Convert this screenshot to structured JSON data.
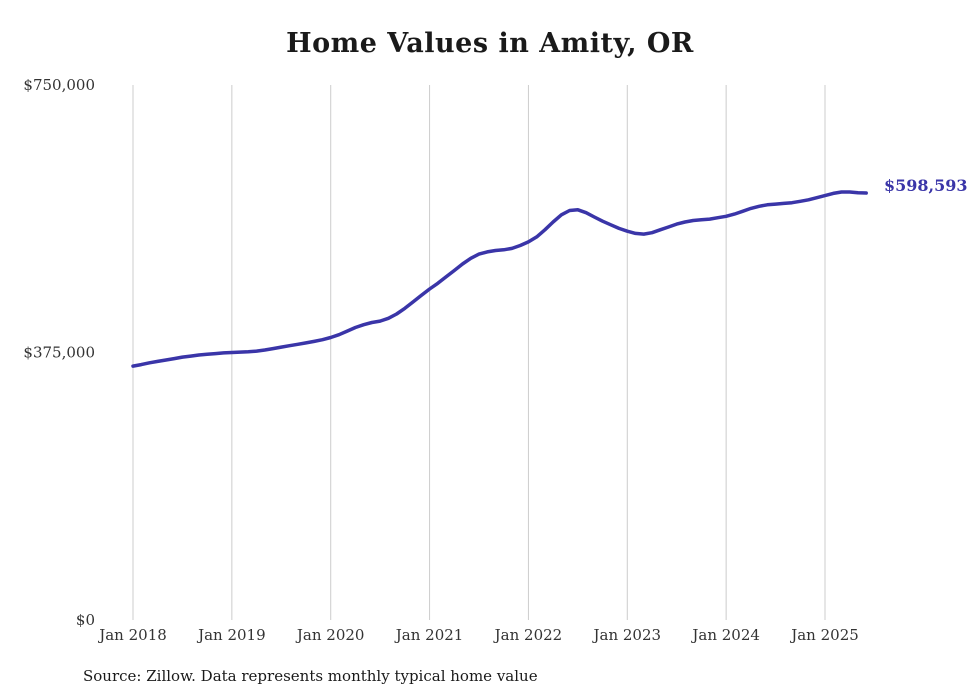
{
  "chart": {
    "title": "Home Values in Amity, OR"
  },
  "colors": {
    "line": "#3a35a8",
    "grid": "#cccccc",
    "axis_text": "#333333",
    "title_text": "#1a1a1a"
  },
  "chart_data": {
    "type": "line",
    "title": "Home Values in Amity, OR",
    "xlabel": "",
    "ylabel": "",
    "ylim": [
      0,
      750000
    ],
    "grid": "vertical-only",
    "legend": "none",
    "x_start_month": "2018-01",
    "x_tick_labels": [
      "Jan 2018",
      "Jan 2019",
      "Jan 2020",
      "Jan 2021",
      "Jan 2022",
      "Jan 2023",
      "Jan 2024",
      "Jan 2025"
    ],
    "y_ticks": [
      {
        "label": "$0",
        "value": 0
      },
      {
        "label": "$375,000",
        "value": 375000
      },
      {
        "label": "$750,000",
        "value": 750000
      }
    ],
    "series": [
      {
        "name": "Monthly typical home value",
        "values": [
          356000,
          358000,
          360500,
          362500,
          364500,
          366500,
          368500,
          370000,
          371500,
          372500,
          373500,
          374500,
          375000,
          375500,
          376000,
          377000,
          378500,
          380500,
          382500,
          384500,
          386500,
          388500,
          390500,
          393000,
          396000,
          400000,
          405000,
          410000,
          414000,
          417000,
          419000,
          423000,
          429000,
          437000,
          446000,
          455000,
          464000,
          472000,
          481000,
          490000,
          499000,
          507000,
          513000,
          516000,
          518000,
          519000,
          521000,
          525000,
          530000,
          537000,
          547000,
          558000,
          568000,
          574000,
          575000,
          571000,
          565000,
          559000,
          554000,
          549000,
          545000,
          542000,
          541000,
          543000,
          547000,
          551000,
          555000,
          558000,
          560000,
          561000,
          562000,
          564000,
          566000,
          569000,
          573000,
          577000,
          580000,
          582000,
          583000,
          584000,
          585000,
          587000,
          589000,
          592000,
          595000,
          598000,
          600000,
          600000,
          599000,
          598593
        ]
      }
    ],
    "final_value": 598593,
    "end_label": "$598,593"
  },
  "footer": {
    "source": "Source: Zillow. Data represents monthly typical home value"
  }
}
